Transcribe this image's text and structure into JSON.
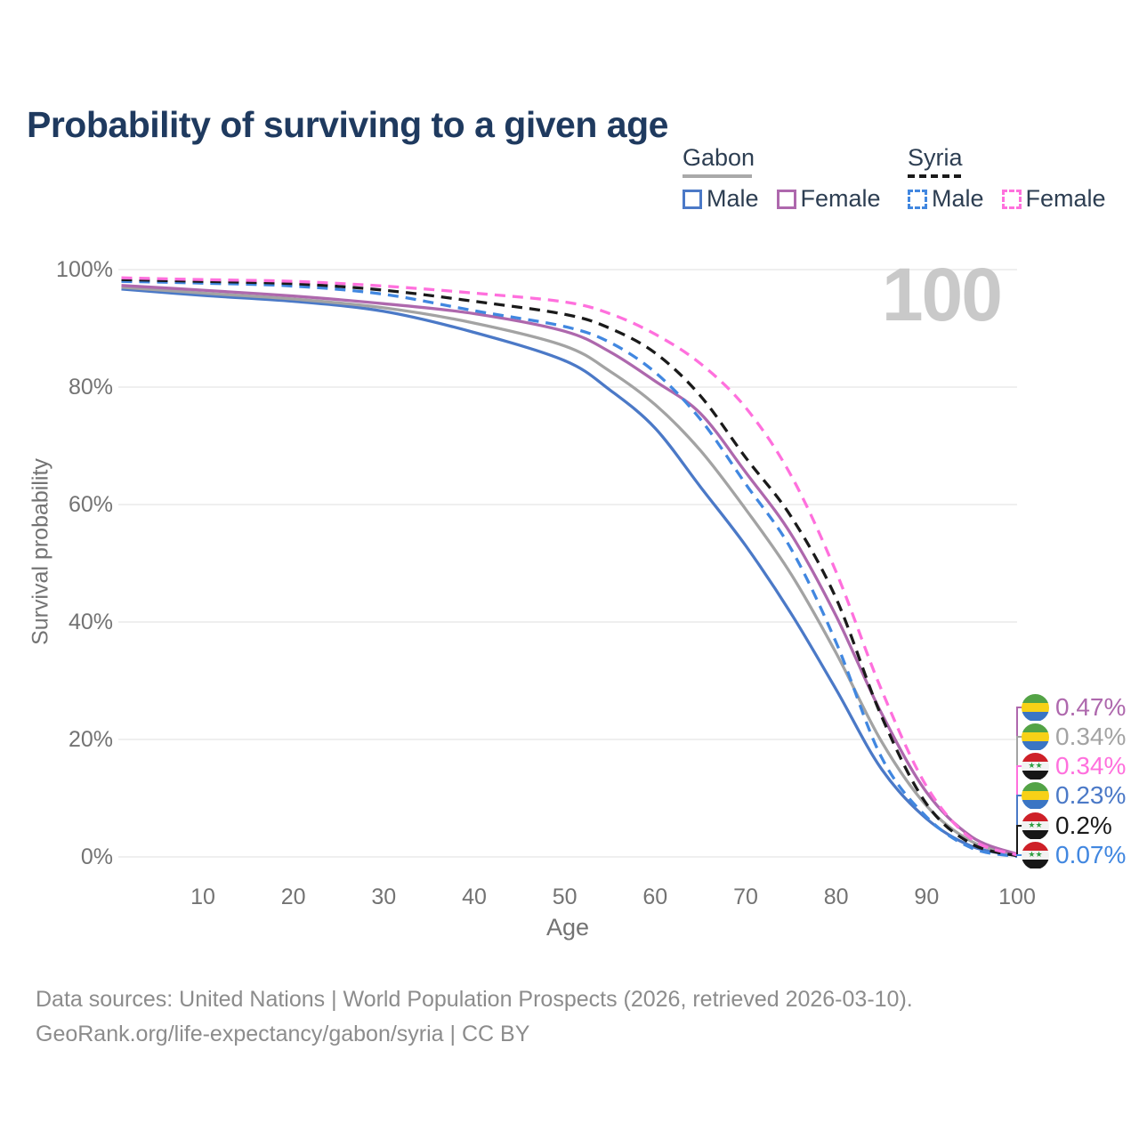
{
  "header": {
    "title": "Probability of surviving to a given age"
  },
  "legend": {
    "groups": [
      {
        "name": "Gabon",
        "style": "solid",
        "items": [
          {
            "label": "Male",
            "color": "#4b79c7"
          },
          {
            "label": "Female",
            "color": "#ae68ad"
          }
        ]
      },
      {
        "name": "Syria",
        "style": "dashed",
        "items": [
          {
            "label": "Male",
            "color": "#4187e0"
          },
          {
            "label": "Female",
            "color": "#ff70dd"
          }
        ]
      }
    ]
  },
  "chart_data": {
    "type": "line",
    "title": "Probability of surviving to a given age",
    "xlabel": "Age",
    "ylabel": "Survival probability",
    "xlim": [
      0,
      100
    ],
    "ylim": [
      0,
      100
    ],
    "grid": "horizontal",
    "legend_position": "top-right",
    "watermark": "100",
    "x_ticks": [
      10,
      20,
      30,
      40,
      50,
      60,
      70,
      80,
      90,
      100
    ],
    "y_tick_values": [
      100,
      80,
      60,
      40,
      20,
      0
    ],
    "y_tick_labels": [
      "100%",
      "80%",
      "60%",
      "40%",
      "20%",
      "0%"
    ],
    "ages": [
      1,
      10,
      20,
      30,
      40,
      50,
      55,
      60,
      65,
      70,
      75,
      80,
      85,
      90,
      95,
      100
    ],
    "series": [
      {
        "name": "Gabon Male",
        "country": "Gabon",
        "sex": "Male",
        "color": "#4b79c7",
        "dashed": false,
        "values": [
          96.7,
          95.6,
          94.6,
          92.9,
          89.3,
          84.5,
          79.5,
          73.0,
          63.0,
          53.0,
          41.5,
          28.5,
          15.0,
          6.5,
          1.8,
          0.23
        ]
      },
      {
        "name": "Gabon Total",
        "country": "Gabon",
        "sex": "Both sexes",
        "color": "#a3a3a3",
        "dashed": false,
        "values": [
          97.0,
          96.0,
          95.0,
          93.5,
          90.9,
          87.0,
          82.7,
          77.0,
          69.2,
          59.2,
          48.2,
          34.7,
          19.7,
          8.7,
          2.6,
          0.34
        ]
      },
      {
        "name": "Gabon Female",
        "country": "Gabon",
        "sex": "Female",
        "color": "#ae68ad",
        "dashed": false,
        "values": [
          97.3,
          96.5,
          95.5,
          94.2,
          92.5,
          89.5,
          86.0,
          81.0,
          75.5,
          65.5,
          55.0,
          41.0,
          24.5,
          11.0,
          3.4,
          0.47
        ]
      },
      {
        "name": "Syria Male",
        "country": "Syria",
        "sex": "Male",
        "color": "#4187e0",
        "dashed": true,
        "values": [
          98.0,
          97.7,
          97.2,
          95.8,
          93.0,
          90.3,
          87.6,
          82.5,
          74.5,
          63.5,
          52.5,
          36.5,
          17.0,
          6.8,
          1.5,
          0.07
        ]
      },
      {
        "name": "Syria Total",
        "country": "Syria",
        "sex": "Both sexes",
        "color": "#1a1a1a",
        "dashed": true,
        "values": [
          98.3,
          98.0,
          97.6,
          96.5,
          94.6,
          92.4,
          90.0,
          85.8,
          78.5,
          68.0,
          58.0,
          44.0,
          24.0,
          9.0,
          2.2,
          0.2
        ]
      },
      {
        "name": "Syria Female",
        "country": "Syria",
        "sex": "Female",
        "color": "#ff70dd",
        "dashed": true,
        "values": [
          98.6,
          98.3,
          98.0,
          97.2,
          96.0,
          94.5,
          92.5,
          89.0,
          84.0,
          76.5,
          65.0,
          48.5,
          28.5,
          12.0,
          3.0,
          0.34
        ]
      }
    ],
    "end_labels": [
      {
        "value": "0.47%",
        "flag": "gabon",
        "color": "#ae68ad"
      },
      {
        "value": "0.34%",
        "flag": "gabon",
        "color": "#a3a3a3"
      },
      {
        "value": "0.34%",
        "flag": "syria",
        "color": "#ff70dd"
      },
      {
        "value": "0.23%",
        "flag": "gabon",
        "color": "#4b79c7"
      },
      {
        "value": "0.2%",
        "flag": "syria",
        "color": "#1a1a1a"
      },
      {
        "value": "0.07%",
        "flag": "syria",
        "color": "#4187e0"
      }
    ]
  },
  "footer": {
    "line1": "Data sources: United Nations | World Population Prospects (2026, retrieved 2026-03-10).",
    "line2": "GeoRank.org/life-expectancy/gabon/syria | CC BY"
  }
}
